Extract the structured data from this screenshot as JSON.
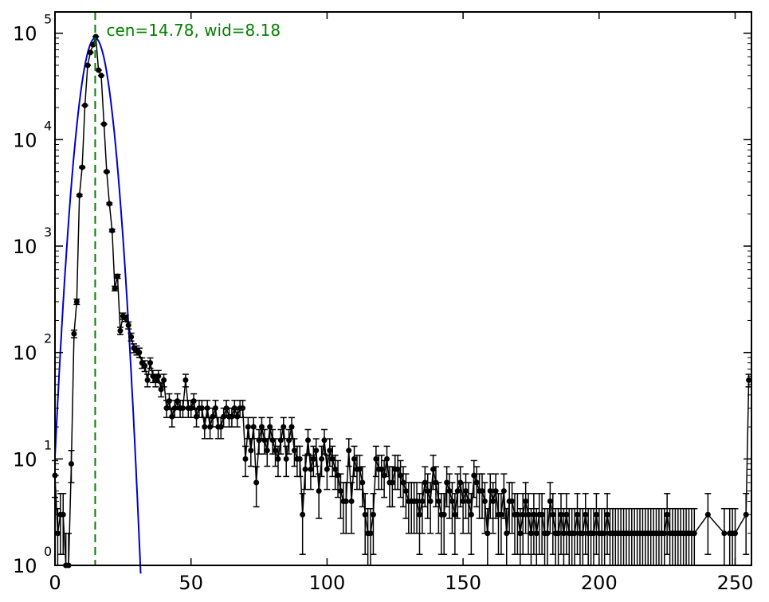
{
  "chart_data": {
    "type": "scatter",
    "title": "",
    "xlabel": "",
    "ylabel": "",
    "x_range": [
      0,
      256
    ],
    "y_range_log10": [
      0,
      5.2
    ],
    "y_scale": "log",
    "grid": false,
    "legend": "none",
    "x_ticks": [
      {
        "value": 0,
        "label": "0"
      },
      {
        "value": 50,
        "label": "50"
      },
      {
        "value": 100,
        "label": "100"
      },
      {
        "value": 150,
        "label": "150"
      },
      {
        "value": 200,
        "label": "200"
      },
      {
        "value": 250,
        "label": "250"
      }
    ],
    "y_ticks": [
      {
        "value": 1,
        "base": "10",
        "exp": "0"
      },
      {
        "value": 10,
        "base": "10",
        "exp": "1"
      },
      {
        "value": 100,
        "base": "10",
        "exp": "2"
      },
      {
        "value": 1000,
        "base": "10",
        "exp": "3"
      },
      {
        "value": 10000,
        "base": "10",
        "exp": "4"
      },
      {
        "value": 100000,
        "base": "10",
        "exp": "5"
      }
    ],
    "annotation": {
      "text": "cen=14.78, wid=8.18",
      "color": "#008000"
    },
    "center_line": {
      "x": 14.78,
      "color": "#008000"
    },
    "fit": {
      "type": "gaussian",
      "center": 14.78,
      "width": 8.18,
      "peak": 90000,
      "color": "#0000cc"
    },
    "colors": {
      "data": "#000000",
      "fit": "#0000cc",
      "annotation": "#008000"
    },
    "series": [
      {
        "points": [
          [
            0,
            7
          ],
          [
            1,
            2
          ],
          [
            2,
            3
          ],
          [
            3,
            3
          ],
          [
            4,
            1
          ],
          [
            5,
            1
          ],
          [
            6,
            9
          ],
          [
            7,
            150
          ],
          [
            8,
            300
          ],
          [
            9,
            3000
          ],
          [
            10,
            5500
          ],
          [
            11,
            21000
          ],
          [
            12,
            50000
          ],
          [
            13,
            66000
          ],
          [
            14,
            78000
          ],
          [
            15,
            93000
          ],
          [
            16,
            45000
          ],
          [
            17,
            40000
          ],
          [
            18,
            14000
          ],
          [
            19,
            5000
          ],
          [
            20,
            2500
          ],
          [
            21,
            1400
          ],
          [
            22,
            400
          ],
          [
            23,
            520
          ],
          [
            24,
            160
          ],
          [
            25,
            220
          ],
          [
            26,
            210
          ],
          [
            27,
            180
          ],
          [
            28,
            140
          ],
          [
            29,
            110
          ],
          [
            30,
            105
          ],
          [
            31,
            100
          ],
          [
            32,
            80
          ],
          [
            33,
            75
          ],
          [
            34,
            55
          ],
          [
            35,
            80
          ],
          [
            36,
            60
          ],
          [
            37,
            55
          ],
          [
            38,
            60
          ],
          [
            39,
            45
          ],
          [
            40,
            55
          ],
          [
            41,
            30
          ],
          [
            42,
            35
          ],
          [
            43,
            25
          ],
          [
            44,
            30
          ],
          [
            45,
            35
          ],
          [
            46,
            30
          ],
          [
            47,
            30
          ],
          [
            48,
            55
          ],
          [
            49,
            30
          ],
          [
            50,
            30
          ],
          [
            51,
            35
          ],
          [
            52,
            25
          ],
          [
            53,
            30
          ],
          [
            54,
            30
          ],
          [
            55,
            20
          ],
          [
            56,
            30
          ],
          [
            57,
            20
          ],
          [
            58,
            25
          ],
          [
            59,
            30
          ],
          [
            60,
            20
          ],
          [
            61,
            20
          ],
          [
            62,
            25
          ],
          [
            63,
            30
          ],
          [
            64,
            25
          ],
          [
            65,
            25
          ],
          [
            66,
            30
          ],
          [
            67,
            25
          ],
          [
            68,
            30
          ],
          [
            69,
            30
          ],
          [
            70,
            10
          ],
          [
            71,
            20
          ],
          [
            72,
            12
          ],
          [
            73,
            20
          ],
          [
            74,
            6
          ],
          [
            75,
            15
          ],
          [
            76,
            20
          ],
          [
            77,
            15
          ],
          [
            78,
            12
          ],
          [
            79,
            20
          ],
          [
            80,
            15
          ],
          [
            81,
            12
          ],
          [
            82,
            10
          ],
          [
            83,
            15
          ],
          [
            84,
            20
          ],
          [
            85,
            10
          ],
          [
            86,
            15
          ],
          [
            87,
            20
          ],
          [
            88,
            12
          ],
          [
            89,
            10
          ],
          [
            90,
            10
          ],
          [
            91,
            3
          ],
          [
            92,
            8
          ],
          [
            93,
            15
          ],
          [
            94,
            8
          ],
          [
            95,
            10
          ],
          [
            96,
            12
          ],
          [
            97,
            5
          ],
          [
            98,
            10
          ],
          [
            99,
            15
          ],
          [
            100,
            8
          ],
          [
            101,
            12
          ],
          [
            102,
            10
          ],
          [
            103,
            8
          ],
          [
            104,
            7
          ],
          [
            105,
            5
          ],
          [
            106,
            4
          ],
          [
            107,
            4
          ],
          [
            108,
            12
          ],
          [
            109,
            4
          ],
          [
            110,
            10
          ],
          [
            111,
            8
          ],
          [
            112,
            8
          ],
          [
            113,
            6
          ],
          [
            114,
            3
          ],
          [
            115,
            2
          ],
          [
            116,
            2
          ],
          [
            117,
            3
          ],
          [
            118,
            10
          ],
          [
            119,
            8
          ],
          [
            120,
            8
          ],
          [
            121,
            7
          ],
          [
            122,
            10
          ],
          [
            123,
            6
          ],
          [
            124,
            6
          ],
          [
            125,
            8
          ],
          [
            126,
            8
          ],
          [
            127,
            7
          ],
          [
            128,
            6
          ],
          [
            129,
            5
          ],
          [
            130,
            4
          ],
          [
            131,
            4
          ],
          [
            132,
            4
          ],
          [
            133,
            4
          ],
          [
            134,
            3
          ],
          [
            135,
            4
          ],
          [
            136,
            6
          ],
          [
            137,
            5
          ],
          [
            138,
            4
          ],
          [
            139,
            8
          ],
          [
            140,
            6
          ],
          [
            141,
            4
          ],
          [
            142,
            3
          ],
          [
            143,
            3
          ],
          [
            144,
            6
          ],
          [
            145,
            5
          ],
          [
            146,
            4
          ],
          [
            147,
            3
          ],
          [
            148,
            5
          ],
          [
            149,
            6
          ],
          [
            150,
            4
          ],
          [
            151,
            5
          ],
          [
            152,
            4
          ],
          [
            153,
            3
          ],
          [
            154,
            7
          ],
          [
            155,
            6
          ],
          [
            156,
            5
          ],
          [
            157,
            5
          ],
          [
            158,
            4
          ],
          [
            159,
            2
          ],
          [
            160,
            5
          ],
          [
            161,
            4
          ],
          [
            162,
            5
          ],
          [
            163,
            3
          ],
          [
            164,
            3
          ],
          [
            165,
            5
          ],
          [
            166,
            2
          ],
          [
            167,
            4
          ],
          [
            168,
            4
          ],
          [
            169,
            3
          ],
          [
            170,
            3
          ],
          [
            171,
            2
          ],
          [
            172,
            3
          ],
          [
            173,
            4
          ],
          [
            174,
            3
          ],
          [
            175,
            2
          ],
          [
            176,
            3
          ],
          [
            177,
            2
          ],
          [
            178,
            3
          ],
          [
            179,
            3
          ],
          [
            180,
            2
          ],
          [
            181,
            2
          ],
          [
            182,
            4
          ],
          [
            183,
            3
          ],
          [
            184,
            2
          ],
          [
            185,
            2
          ],
          [
            186,
            3
          ],
          [
            187,
            2
          ],
          [
            188,
            3
          ],
          [
            189,
            2
          ],
          [
            190,
            2
          ],
          [
            191,
            2
          ],
          [
            192,
            3
          ],
          [
            193,
            2
          ],
          [
            194,
            2
          ],
          [
            195,
            3
          ],
          [
            196,
            2
          ],
          [
            197,
            2
          ],
          [
            198,
            2
          ],
          [
            199,
            3
          ],
          [
            200,
            2
          ],
          [
            201,
            2
          ],
          [
            202,
            2
          ],
          [
            203,
            3
          ],
          [
            204,
            2
          ],
          [
            205,
            2
          ],
          [
            206,
            2
          ],
          [
            207,
            2
          ],
          [
            208,
            2
          ],
          [
            209,
            2
          ],
          [
            210,
            2
          ],
          [
            211,
            2
          ],
          [
            212,
            2
          ],
          [
            213,
            2
          ],
          [
            214,
            2
          ],
          [
            215,
            2
          ],
          [
            216,
            2
          ],
          [
            217,
            2
          ],
          [
            218,
            2
          ],
          [
            219,
            2
          ],
          [
            220,
            2
          ],
          [
            221,
            2
          ],
          [
            222,
            2
          ],
          [
            223,
            2
          ],
          [
            224,
            2
          ],
          [
            225,
            3
          ],
          [
            226,
            2
          ],
          [
            227,
            2
          ],
          [
            228,
            2
          ],
          [
            229,
            2
          ],
          [
            230,
            2
          ],
          [
            231,
            2
          ],
          [
            232,
            2
          ],
          [
            233,
            2
          ],
          [
            234,
            2
          ],
          [
            235,
            2
          ],
          [
            240,
            3
          ],
          [
            246,
            2
          ],
          [
            248,
            2
          ],
          [
            249,
            2
          ],
          [
            250,
            2
          ],
          [
            254,
            3
          ],
          [
            255,
            55
          ]
        ]
      }
    ]
  }
}
